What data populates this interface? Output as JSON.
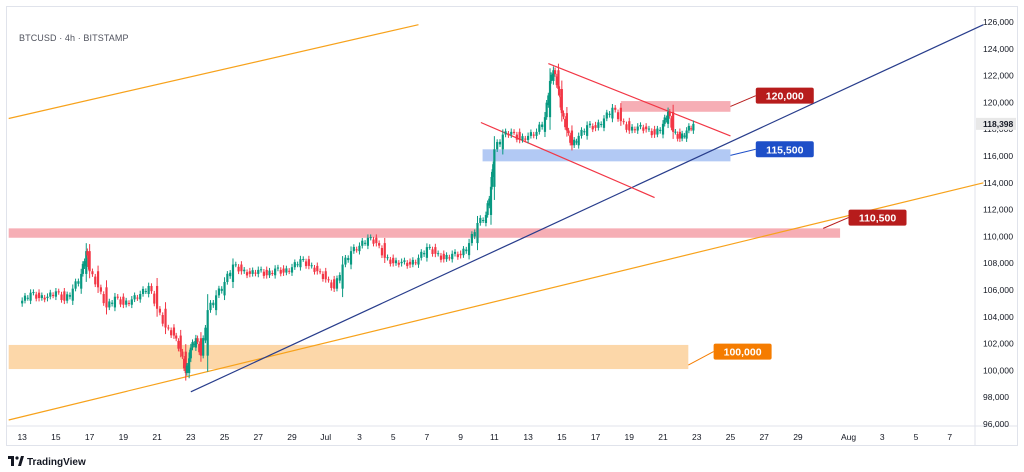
{
  "header": {
    "symbol_line": "BTCUSD · 4h · BITSTAMP"
  },
  "footer": {
    "brand_name": "TradingView"
  },
  "colors": {
    "bull": "#089981",
    "bear": "#f23645",
    "orange_line": "#f7a21b",
    "blue_line": "#283d8c",
    "red_channel": "#f23645",
    "zone_red": "#f5a0a8",
    "zone_blue": "#a5bff2",
    "zone_orange": "#fcd09a",
    "label_red": "#b71c1c",
    "label_blue": "#1e4fc8",
    "label_orange": "#f57c00",
    "price_axis_text": "#131722"
  },
  "chart_data": {
    "type": "candlestick",
    "title": "",
    "xlabel": "",
    "ylabel": "",
    "ylim": [
      96000,
      126000
    ],
    "price_ticks": [
      {
        "value": 126000,
        "label": "126,000"
      },
      {
        "value": 124000,
        "label": "124,000"
      },
      {
        "value": 122000,
        "label": "122,000"
      },
      {
        "value": 120000,
        "label": "120,000"
      },
      {
        "value": 118000,
        "label": "118,000"
      },
      {
        "value": 116000,
        "label": "116,000"
      },
      {
        "value": 114000,
        "label": "114,000"
      },
      {
        "value": 112000,
        "label": "112,000"
      },
      {
        "value": 110000,
        "label": "110,000"
      },
      {
        "value": 108000,
        "label": "108,000"
      },
      {
        "value": 106000,
        "label": "106,000"
      },
      {
        "value": 104000,
        "label": "104,000"
      },
      {
        "value": 102000,
        "label": "102,000"
      },
      {
        "value": 100000,
        "label": "100,000"
      },
      {
        "value": 98000,
        "label": "98,000"
      },
      {
        "value": 96000,
        "label": "96,000"
      }
    ],
    "current_price": {
      "value": 118398,
      "label": "118,398"
    },
    "time_ticks": [
      {
        "day": 13,
        "label": "13"
      },
      {
        "day": 15,
        "label": "15"
      },
      {
        "day": 17,
        "label": "17"
      },
      {
        "day": 19,
        "label": "19"
      },
      {
        "day": 21,
        "label": "21"
      },
      {
        "day": 23,
        "label": "23"
      },
      {
        "day": 25,
        "label": "25"
      },
      {
        "day": 27,
        "label": "27"
      },
      {
        "day": 29,
        "label": "29"
      },
      {
        "day": 31,
        "label": "Jul"
      },
      {
        "day": 33,
        "label": "3"
      },
      {
        "day": 35,
        "label": "5"
      },
      {
        "day": 37,
        "label": "7"
      },
      {
        "day": 39,
        "label": "9"
      },
      {
        "day": 41,
        "label": "11"
      },
      {
        "day": 43,
        "label": "13"
      },
      {
        "day": 45,
        "label": "15"
      },
      {
        "day": 47,
        "label": "17"
      },
      {
        "day": 49,
        "label": "19"
      },
      {
        "day": 51,
        "label": "21"
      },
      {
        "day": 53,
        "label": "23"
      },
      {
        "day": 55,
        "label": "25"
      },
      {
        "day": 57,
        "label": "27"
      },
      {
        "day": 59,
        "label": "29"
      },
      {
        "day": 62,
        "label": "Aug"
      },
      {
        "day": 64,
        "label": "3"
      },
      {
        "day": 66,
        "label": "5"
      },
      {
        "day": 68,
        "label": "7"
      }
    ],
    "daily_closes": [
      [
        13,
        105200
      ],
      [
        13.5,
        105800
      ],
      [
        14,
        105400
      ],
      [
        14.5,
        105500
      ],
      [
        15,
        105900
      ],
      [
        15.5,
        105200
      ],
      [
        16,
        106100
      ],
      [
        16.5,
        107200
      ],
      [
        16.8,
        108900
      ],
      [
        17,
        107400
      ],
      [
        17.5,
        106200
      ],
      [
        18,
        104700
      ],
      [
        18.5,
        105500
      ],
      [
        19,
        104900
      ],
      [
        19.5,
        105300
      ],
      [
        20,
        105700
      ],
      [
        20.5,
        106300
      ],
      [
        21,
        104600
      ],
      [
        21.5,
        103200
      ],
      [
        22,
        102600
      ],
      [
        22.4,
        101400
      ],
      [
        22.7,
        99800
      ],
      [
        22.9,
        100900
      ],
      [
        23,
        101700
      ],
      [
        23.3,
        102400
      ],
      [
        23.6,
        101100
      ],
      [
        24,
        104500
      ],
      [
        24.5,
        105600
      ],
      [
        25,
        106600
      ],
      [
        25.5,
        107900
      ],
      [
        26,
        107400
      ],
      [
        26.5,
        107200
      ],
      [
        27,
        107500
      ],
      [
        27.5,
        107100
      ],
      [
        28,
        107600
      ],
      [
        28.5,
        107300
      ],
      [
        29,
        107700
      ],
      [
        29.5,
        108300
      ],
      [
        30,
        107800
      ],
      [
        30.5,
        107400
      ],
      [
        31,
        106800
      ],
      [
        31.5,
        106100
      ],
      [
        32,
        107900
      ],
      [
        32.5,
        108900
      ],
      [
        33,
        109300
      ],
      [
        33.5,
        109900
      ],
      [
        34,
        109500
      ],
      [
        34.5,
        108400
      ],
      [
        35,
        108000
      ],
      [
        35.5,
        108100
      ],
      [
        36,
        107900
      ],
      [
        36.5,
        108400
      ],
      [
        37,
        109200
      ],
      [
        37.5,
        108700
      ],
      [
        38,
        108300
      ],
      [
        38.5,
        108700
      ],
      [
        39,
        108600
      ],
      [
        39.5,
        109500
      ],
      [
        40,
        111000
      ],
      [
        40.5,
        111600
      ],
      [
        40.8,
        113700
      ],
      [
        41,
        116500
      ],
      [
        41.5,
        117600
      ],
      [
        42,
        117800
      ],
      [
        42.5,
        117200
      ],
      [
        43,
        117500
      ],
      [
        43.5,
        117800
      ],
      [
        44,
        118900
      ],
      [
        44.3,
        121600
      ],
      [
        44.5,
        122400
      ],
      [
        44.8,
        121000
      ],
      [
        45,
        119200
      ],
      [
        45.3,
        117900
      ],
      [
        45.6,
        116800
      ],
      [
        46,
        117500
      ],
      [
        46.5,
        118300
      ],
      [
        47,
        118100
      ],
      [
        47.5,
        118800
      ],
      [
        48,
        119600
      ],
      [
        48.5,
        118600
      ],
      [
        49,
        117900
      ],
      [
        49.5,
        118200
      ],
      [
        50,
        118000
      ],
      [
        50.5,
        117600
      ],
      [
        51,
        118400
      ],
      [
        51.3,
        119300
      ],
      [
        51.6,
        117800
      ],
      [
        52,
        117300
      ],
      [
        52.4,
        117900
      ],
      [
        52.8,
        118398
      ]
    ],
    "zones": [
      {
        "name": "resistance-zone-120000",
        "low": 119300,
        "high": 120100,
        "from_day": 48.5,
        "to_day": 55,
        "color_key": "zone_red"
      },
      {
        "name": "support-zone-115500",
        "low": 115600,
        "high": 116500,
        "from_day": 40.3,
        "to_day": 55,
        "color_key": "zone_blue"
      },
      {
        "name": "support-zone-110500",
        "low": 109900,
        "high": 110600,
        "from_day": 12.2,
        "to_day": 61.5,
        "color_key": "zone_red"
      },
      {
        "name": "support-zone-100000",
        "low": 100100,
        "high": 101900,
        "from_day": 12.2,
        "to_day": 52.5,
        "color_key": "zone_orange"
      }
    ],
    "trendlines": [
      {
        "name": "upper-orange-channel-line",
        "from": [
          12.2,
          118800
        ],
        "to": [
          36.5,
          125800
        ],
        "color_key": "orange_line"
      },
      {
        "name": "lower-orange-channel-line",
        "from": [
          12.2,
          96300
        ],
        "to": [
          70,
          114000
        ],
        "color_key": "orange_line"
      },
      {
        "name": "blue-trendline",
        "from": [
          23,
          98400
        ],
        "to": [
          70,
          125800
        ],
        "color_key": "blue_line"
      },
      {
        "name": "red-flag-upper-line",
        "from": [
          44.2,
          122900
        ],
        "to": [
          55,
          117500
        ],
        "color_key": "red_channel"
      },
      {
        "name": "red-flag-lower-line",
        "from": [
          40.2,
          118500
        ],
        "to": [
          50.5,
          112900
        ],
        "color_key": "red_channel"
      }
    ],
    "labels": [
      {
        "name": "label-120000",
        "text": "120,000",
        "anchor_day": 55,
        "anchor_price": 119700,
        "box_day": 56.5,
        "box_price": 121100,
        "color_key": "label_red"
      },
      {
        "name": "label-115500",
        "text": "115,500",
        "anchor_day": 55,
        "anchor_price": 116050,
        "box_day": 56.5,
        "box_price": 117100,
        "color_key": "label_blue"
      },
      {
        "name": "label-110500",
        "text": "110,500",
        "anchor_day": 60.5,
        "anchor_price": 110600,
        "box_day": 62,
        "box_price": 112000,
        "color_key": "label_red"
      },
      {
        "name": "label-100000",
        "text": "100,000",
        "anchor_day": 52.5,
        "anchor_price": 100400,
        "box_day": 54,
        "box_price": 102000,
        "color_key": "label_orange"
      }
    ]
  }
}
